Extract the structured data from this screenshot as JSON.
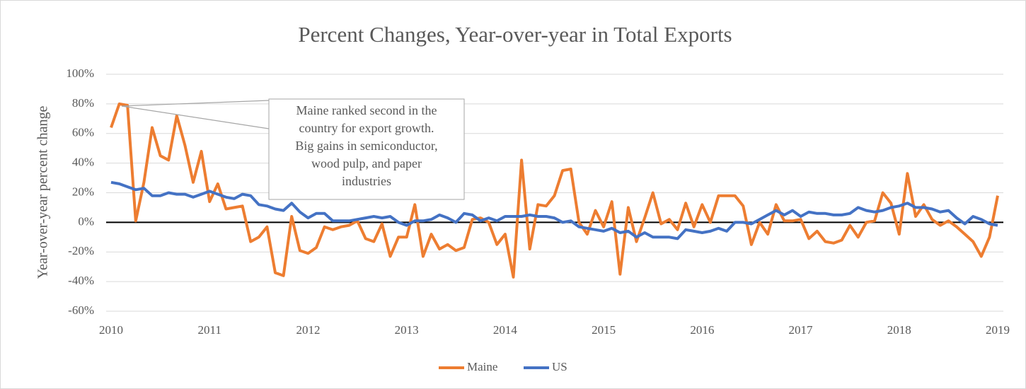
{
  "chart_data": {
    "type": "line",
    "title": "Percent Changes, Year-over-year in Total Exports",
    "ylabel": "Year-over-year percent change",
    "annotation": [
      "Maine ranked second in the",
      "country for export growth.",
      "Big gains in semiconductor,",
      "wood pulp, and paper",
      "industries"
    ],
    "categories": [
      "2010",
      null,
      null,
      null,
      null,
      null,
      null,
      null,
      null,
      null,
      null,
      null,
      "2011",
      null,
      null,
      null,
      null,
      null,
      null,
      null,
      null,
      null,
      null,
      null,
      "2012",
      null,
      null,
      null,
      null,
      null,
      null,
      null,
      null,
      null,
      null,
      null,
      "2013",
      null,
      null,
      null,
      null,
      null,
      null,
      null,
      null,
      null,
      null,
      null,
      "2014",
      null,
      null,
      null,
      null,
      null,
      null,
      null,
      null,
      null,
      null,
      null,
      "2015",
      null,
      null,
      null,
      null,
      null,
      null,
      null,
      null,
      null,
      null,
      null,
      "2016",
      null,
      null,
      null,
      null,
      null,
      null,
      null,
      null,
      null,
      null,
      null,
      "2017",
      null,
      null,
      null,
      null,
      null,
      null,
      null,
      null,
      null,
      null,
      null,
      "2018",
      null,
      null,
      null,
      null,
      null,
      null,
      null,
      null,
      null,
      null,
      null,
      "2019"
    ],
    "series": [
      {
        "name": "Maine",
        "color": "#ed7d31",
        "values": [
          64,
          80,
          79,
          1,
          27,
          64,
          45,
          42,
          72,
          52,
          27,
          48,
          14,
          26,
          9,
          10,
          11,
          -13,
          -10,
          -3,
          -34,
          -36,
          4,
          -19,
          -21,
          -17,
          -3,
          -5,
          -3,
          -2,
          1,
          -11,
          -13,
          -1,
          -23,
          -10,
          -10,
          12,
          -23,
          -8,
          -18,
          -15,
          -19,
          -17,
          2,
          3,
          0,
          -15,
          -8,
          -37,
          42,
          -18,
          12,
          11,
          18,
          35,
          36,
          0,
          -8,
          8,
          -3,
          14,
          -35,
          10,
          -13,
          3,
          20,
          -1,
          2,
          -5,
          13,
          -3,
          12,
          0,
          18,
          18,
          18,
          11,
          -15,
          0,
          -8,
          12,
          1,
          1,
          2,
          -11,
          -6,
          -13,
          -14,
          -12,
          -2,
          -10,
          0,
          1,
          20,
          13,
          -8,
          33,
          4,
          12,
          2,
          -2,
          1,
          -3,
          -8,
          -13,
          -23,
          -10,
          18
        ]
      },
      {
        "name": "US",
        "color": "#4472c4",
        "values": [
          27,
          26,
          24,
          22,
          23,
          18,
          18,
          20,
          19,
          19,
          17,
          19,
          21,
          19,
          17,
          16,
          19,
          18,
          12,
          11,
          9,
          8,
          13,
          7,
          3,
          6,
          6,
          1,
          1,
          1,
          2,
          3,
          4,
          3,
          4,
          0,
          -2,
          1,
          1,
          2,
          5,
          3,
          0,
          6,
          5,
          1,
          3,
          1,
          4,
          4,
          4,
          5,
          4,
          4,
          3,
          0,
          1,
          -3,
          -4,
          -5,
          -6,
          -4,
          -7,
          -6,
          -10,
          -7,
          -10,
          -10,
          -10,
          -11,
          -5,
          -6,
          -7,
          -6,
          -4,
          -6,
          0,
          0,
          -1,
          2,
          5,
          8,
          5,
          8,
          4,
          7,
          6,
          6,
          5,
          5,
          6,
          10,
          8,
          7,
          8,
          10,
          11,
          13,
          10,
          10,
          9,
          7,
          8,
          3,
          -1,
          4,
          2,
          -1,
          -2
        ]
      }
    ],
    "ylim": [
      -60,
      100
    ],
    "yticks": [
      {
        "value": -60,
        "label": "-60%"
      },
      {
        "value": -40,
        "label": "-40%"
      },
      {
        "value": -20,
        "label": "-20%"
      },
      {
        "value": 0,
        "label": "0%"
      },
      {
        "value": 20,
        "label": "20%"
      },
      {
        "value": 40,
        "label": "40%"
      },
      {
        "value": 60,
        "label": "60%"
      },
      {
        "value": 80,
        "label": "80%"
      },
      {
        "value": 100,
        "label": "100%"
      }
    ],
    "grid": true,
    "legend": "bottom"
  }
}
